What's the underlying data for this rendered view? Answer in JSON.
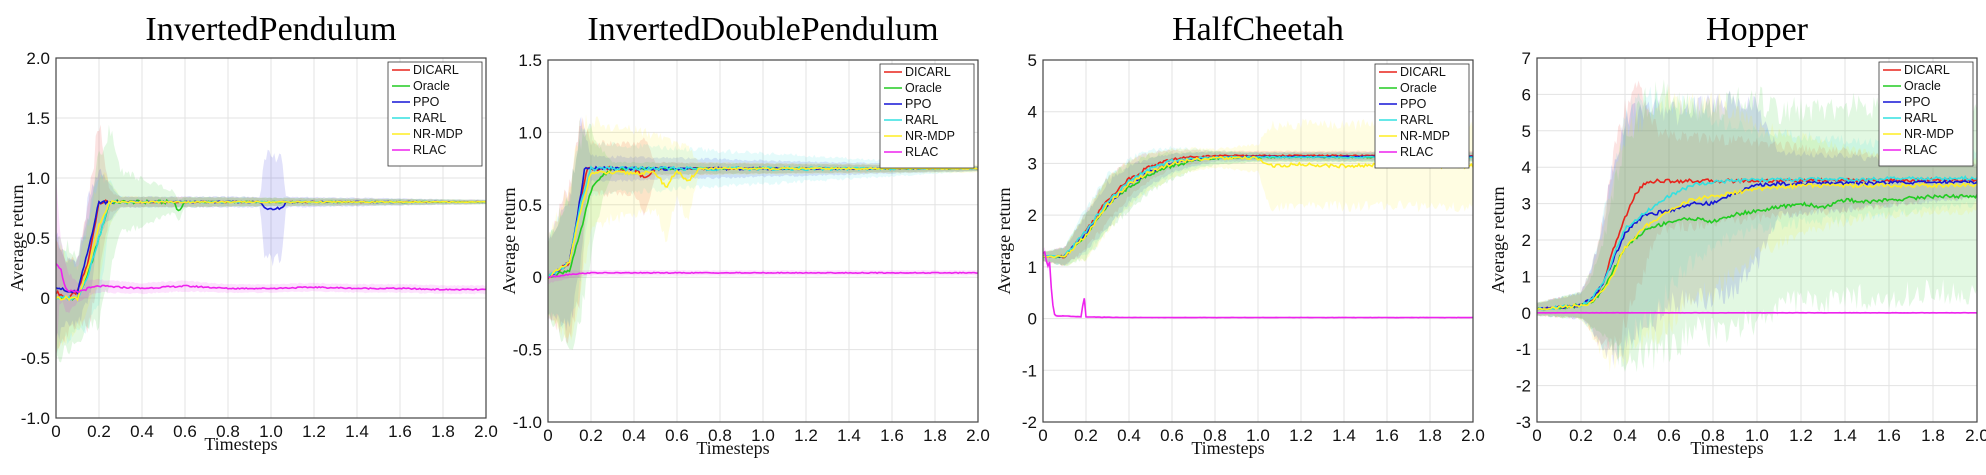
{
  "chart_data": [
    {
      "type": "line",
      "title": "InvertedPendulum",
      "xlabel": "Timesteps",
      "ylabel": "Average return",
      "xlim": [
        0,
        2.0
      ],
      "ylim": [
        -1.0,
        2.0
      ],
      "xticks": [
        "0",
        "0.2",
        "0.4",
        "0.6",
        "0.8",
        "1.0",
        "1.2",
        "1.4",
        "1.6",
        "1.8",
        "2.0"
      ],
      "yticks": [
        "-1.0",
        "-0.5",
        "0",
        "0.5",
        "1.0",
        "1.5",
        "2.0"
      ],
      "grid": true,
      "legend": "top-right",
      "series": [
        {
          "name": "DICARL",
          "color": "#e8231c",
          "x": [
            0,
            0.05,
            0.1,
            0.15,
            0.2,
            0.25,
            0.3,
            2.0
          ],
          "y": [
            0.05,
            0.0,
            0.05,
            0.3,
            0.8,
            0.8,
            0.8,
            0.8
          ],
          "band": [
            0.55,
            0.35,
            0.3,
            0.6,
            0.75,
            0.1,
            0.05,
            0.02
          ]
        },
        {
          "name": "Oracle",
          "color": "#22cc22",
          "x": [
            0,
            0.1,
            0.15,
            0.2,
            0.25,
            0.3,
            0.55,
            0.57,
            0.6,
            2.0
          ],
          "y": [
            0.0,
            0.0,
            0.2,
            0.5,
            0.8,
            0.8,
            0.8,
            0.72,
            0.8,
            0.8
          ],
          "band": [
            0.6,
            0.4,
            0.5,
            0.8,
            0.7,
            0.3,
            0.1,
            0.1,
            0.05,
            0.02
          ]
        },
        {
          "name": "PPO",
          "color": "#1515d6",
          "x": [
            0,
            0.05,
            0.1,
            0.15,
            0.2,
            0.3,
            0.95,
            0.97,
            1.05,
            1.07,
            2.0
          ],
          "y": [
            0.1,
            0.05,
            0.05,
            0.4,
            0.8,
            0.8,
            0.8,
            0.75,
            0.75,
            0.8,
            0.8
          ],
          "band": [
            0.5,
            0.3,
            0.3,
            0.5,
            0.3,
            0.05,
            0.05,
            0.5,
            0.5,
            0.05,
            0.02
          ]
        },
        {
          "name": "RARL",
          "color": "#33e0e0",
          "x": [
            0,
            0.1,
            0.15,
            0.2,
            0.25,
            0.3,
            2.0
          ],
          "y": [
            0.0,
            0.0,
            0.2,
            0.5,
            0.8,
            0.8,
            0.8
          ],
          "band": [
            0.5,
            0.3,
            0.5,
            0.6,
            0.2,
            0.05,
            0.02
          ]
        },
        {
          "name": "NR-MDP",
          "color": "#ffee22",
          "x": [
            0,
            0.1,
            0.15,
            0.2,
            0.25,
            0.3,
            2.0
          ],
          "y": [
            0.0,
            0.0,
            0.25,
            0.6,
            0.8,
            0.8,
            0.8
          ],
          "band": [
            0.5,
            0.3,
            0.4,
            0.5,
            0.2,
            0.05,
            0.02
          ]
        },
        {
          "name": "RLAC",
          "color": "#ee22ee",
          "x": [
            0,
            0.02,
            0.05,
            0.1,
            0.15,
            0.2,
            0.4,
            0.6,
            0.8,
            1.0,
            1.2,
            1.4,
            1.6,
            1.8,
            2.0
          ],
          "y": [
            0.3,
            0.25,
            0.05,
            0.05,
            0.08,
            0.1,
            0.08,
            0.1,
            0.08,
            0.08,
            0.09,
            0.08,
            0.08,
            0.07,
            0.07
          ],
          "band": [
            0.8,
            0.3,
            0.2,
            0.1,
            0.08,
            0.06,
            0.05,
            0.05,
            0.04,
            0.04,
            0.04,
            0.04,
            0.04,
            0.04,
            0.04
          ]
        }
      ]
    },
    {
      "type": "line",
      "title": "InvertedDoublePendulum",
      "xlabel": "Timesteps",
      "ylabel": "Average return",
      "xlim": [
        0,
        2.0
      ],
      "ylim": [
        -1.0,
        1.5
      ],
      "xticks": [
        "0",
        "0.2",
        "0.4",
        "0.6",
        "0.8",
        "1.0",
        "1.2",
        "1.4",
        "1.6",
        "1.8",
        "2.0"
      ],
      "yticks": [
        "-1.0",
        "-0.5",
        "0",
        "0.5",
        "1.0",
        "1.5"
      ],
      "grid": true,
      "legend": "top-right",
      "series": [
        {
          "name": "DICARL",
          "color": "#e8231c",
          "x": [
            0,
            0.1,
            0.15,
            0.18,
            0.2,
            0.4,
            0.45,
            0.5,
            2.0
          ],
          "y": [
            0.0,
            0.1,
            0.5,
            0.75,
            0.75,
            0.75,
            0.68,
            0.75,
            0.75
          ],
          "band": [
            0.3,
            0.6,
            0.7,
            0.3,
            0.2,
            0.2,
            0.3,
            0.05,
            0.02
          ]
        },
        {
          "name": "Oracle",
          "color": "#22cc22",
          "x": [
            0,
            0.1,
            0.15,
            0.2,
            0.25,
            0.3,
            2.0
          ],
          "y": [
            0.0,
            0.05,
            0.3,
            0.6,
            0.7,
            0.75,
            0.75
          ],
          "band": [
            0.3,
            0.6,
            0.7,
            0.5,
            0.2,
            0.05,
            0.02
          ]
        },
        {
          "name": "PPO",
          "color": "#1515d6",
          "x": [
            0,
            0.1,
            0.15,
            0.17,
            0.2,
            2.0
          ],
          "y": [
            0.0,
            0.1,
            0.55,
            0.75,
            0.75,
            0.75
          ],
          "band": [
            0.3,
            0.5,
            0.6,
            0.3,
            0.1,
            0.02
          ]
        },
        {
          "name": "RARL",
          "color": "#33e0e0",
          "x": [
            0,
            0.1,
            0.15,
            0.2,
            2.0
          ],
          "y": [
            0.0,
            0.1,
            0.5,
            0.75,
            0.75
          ],
          "band": [
            0.3,
            0.5,
            0.6,
            0.2,
            0.02
          ]
        },
        {
          "name": "NR-MDP",
          "color": "#ffee22",
          "x": [
            0,
            0.1,
            0.15,
            0.2,
            0.5,
            0.55,
            0.6,
            0.65,
            0.7,
            2.0
          ],
          "y": [
            0.0,
            0.1,
            0.45,
            0.72,
            0.72,
            0.62,
            0.74,
            0.65,
            0.75,
            0.75
          ],
          "band": [
            0.3,
            0.6,
            0.7,
            0.4,
            0.3,
            0.4,
            0.2,
            0.3,
            0.05,
            0.03
          ]
        },
        {
          "name": "RLAC",
          "color": "#ee22ee",
          "x": [
            0,
            0.1,
            0.2,
            0.4,
            2.0
          ],
          "y": [
            0.0,
            0.02,
            0.03,
            0.03,
            0.03
          ],
          "band": [
            0.05,
            0.03,
            0.02,
            0.02,
            0.02
          ]
        }
      ]
    },
    {
      "type": "line",
      "title": "HalfCheetah",
      "xlabel": "Timesteps",
      "ylabel": "Average return",
      "xlim": [
        0,
        2.0
      ],
      "ylim": [
        -2,
        5
      ],
      "xticks": [
        "0",
        "0.2",
        "0.4",
        "0.6",
        "0.8",
        "1.0",
        "1.2",
        "1.4",
        "1.6",
        "1.8",
        "2.0"
      ],
      "yticks": [
        "-2",
        "-1",
        "0",
        "1",
        "2",
        "3",
        "4",
        "5"
      ],
      "grid": true,
      "legend": "top-right",
      "series": [
        {
          "name": "DICARL",
          "color": "#e8231c",
          "x": [
            0,
            0.1,
            0.2,
            0.3,
            0.4,
            0.5,
            0.6,
            0.7,
            0.8,
            1.0,
            2.0
          ],
          "y": [
            1.2,
            1.2,
            1.7,
            2.3,
            2.7,
            2.95,
            3.08,
            3.13,
            3.15,
            3.15,
            3.15
          ],
          "band": [
            0.1,
            0.2,
            0.4,
            0.5,
            0.4,
            0.3,
            0.2,
            0.15,
            0.1,
            0.1,
            0.1
          ]
        },
        {
          "name": "Oracle",
          "color": "#22cc22",
          "x": [
            0,
            0.1,
            0.2,
            0.3,
            0.4,
            0.5,
            0.6,
            0.7,
            0.8,
            1.0,
            2.0
          ],
          "y": [
            1.2,
            1.2,
            1.6,
            2.2,
            2.55,
            2.8,
            2.95,
            3.05,
            3.1,
            3.12,
            3.12
          ],
          "band": [
            0.1,
            0.2,
            0.5,
            0.6,
            0.5,
            0.4,
            0.3,
            0.2,
            0.15,
            0.1,
            0.1
          ]
        },
        {
          "name": "PPO",
          "color": "#1515d6",
          "x": [
            0,
            0.1,
            0.2,
            0.3,
            0.4,
            0.5,
            0.6,
            0.7,
            0.8,
            1.0,
            2.0
          ],
          "y": [
            1.2,
            1.2,
            1.65,
            2.2,
            2.6,
            2.85,
            3.0,
            3.08,
            3.12,
            3.13,
            3.13
          ],
          "band": [
            0.1,
            0.2,
            0.4,
            0.5,
            0.4,
            0.3,
            0.2,
            0.15,
            0.1,
            0.1,
            0.1
          ]
        },
        {
          "name": "RARL",
          "color": "#33e0e0",
          "x": [
            0,
            0.1,
            0.2,
            0.3,
            0.4,
            0.5,
            0.6,
            0.7,
            0.8,
            1.0,
            2.0
          ],
          "y": [
            1.2,
            1.2,
            1.7,
            2.25,
            2.65,
            2.9,
            3.05,
            3.1,
            3.12,
            3.12,
            3.12
          ],
          "band": [
            0.1,
            0.2,
            0.5,
            0.6,
            0.5,
            0.4,
            0.3,
            0.2,
            0.15,
            0.1,
            0.1
          ]
        },
        {
          "name": "NR-MDP",
          "color": "#ffee22",
          "x": [
            0,
            0.1,
            0.2,
            0.3,
            0.4,
            0.5,
            0.6,
            0.7,
            0.8,
            1.0,
            1.05,
            1.2,
            1.4,
            1.6,
            1.8,
            2.0
          ],
          "y": [
            1.2,
            1.2,
            1.6,
            2.2,
            2.6,
            2.85,
            3.0,
            3.08,
            3.1,
            3.1,
            2.95,
            2.98,
            2.95,
            2.97,
            2.95,
            2.95
          ],
          "band": [
            0.1,
            0.2,
            0.5,
            0.6,
            0.5,
            0.4,
            0.3,
            0.25,
            0.2,
            0.3,
            0.9,
            0.9,
            0.9,
            0.9,
            0.9,
            0.9
          ]
        },
        {
          "name": "RLAC",
          "color": "#ee22ee",
          "x": [
            0,
            0.01,
            0.02,
            0.03,
            0.04,
            0.05,
            0.06,
            0.1,
            0.18,
            0.19,
            0.2,
            0.4,
            1.0,
            2.0
          ],
          "y": [
            1.25,
            1.3,
            0.95,
            1.15,
            0.5,
            0.1,
            0.05,
            0.05,
            0.03,
            0.5,
            0.03,
            0.02,
            0.02,
            0.02
          ],
          "band": [
            0.1,
            0.1,
            0.1,
            0.1,
            0.1,
            0.05,
            0.03,
            0.03,
            0.03,
            0.03,
            0.03,
            0.02,
            0.02,
            0.02
          ]
        }
      ]
    },
    {
      "type": "line",
      "title": "Hopper",
      "xlabel": "Timesteps",
      "ylabel": "Average return",
      "xlim": [
        0,
        2.0
      ],
      "ylim": [
        -3,
        7
      ],
      "xticks": [
        "0",
        "0.2",
        "0.4",
        "0.6",
        "0.8",
        "1.0",
        "1.2",
        "1.4",
        "1.6",
        "1.8",
        "2.0"
      ],
      "yticks": [
        "-3",
        "-2",
        "-1",
        "0",
        "1",
        "2",
        "3",
        "4",
        "5",
        "6",
        "7"
      ],
      "grid": true,
      "legend": "top-right",
      "series": [
        {
          "name": "DICARL",
          "color": "#e8231c",
          "x": [
            0,
            0.2,
            0.25,
            0.3,
            0.35,
            0.4,
            0.45,
            0.5,
            0.55,
            2.0
          ],
          "y": [
            0.1,
            0.2,
            0.35,
            0.8,
            1.8,
            2.6,
            3.3,
            3.6,
            3.62,
            3.65
          ],
          "band": [
            0.2,
            0.4,
            1.0,
            2.0,
            3.0,
            3.5,
            3.2,
            2.5,
            1.5,
            0.5
          ]
        },
        {
          "name": "Oracle",
          "color": "#22cc22",
          "x": [
            0,
            0.2,
            0.25,
            0.3,
            0.35,
            0.4,
            0.5,
            0.6,
            0.7,
            0.8,
            0.9,
            1.0,
            1.1,
            1.2,
            1.3,
            1.4,
            1.5,
            1.6,
            1.7,
            1.8,
            1.9,
            2.0
          ],
          "y": [
            0.1,
            0.2,
            0.3,
            0.6,
            1.2,
            1.8,
            2.3,
            2.5,
            2.6,
            2.5,
            2.7,
            2.8,
            2.9,
            3.0,
            2.9,
            3.1,
            3.05,
            3.1,
            3.15,
            3.2,
            3.2,
            3.2
          ],
          "band": [
            0.2,
            0.4,
            0.8,
            1.5,
            2.5,
            3.5,
            4.0,
            4.0,
            3.5,
            3.5,
            3.5,
            3.5,
            3.0,
            3.0,
            3.0,
            3.0,
            3.0,
            3.0,
            3.0,
            3.0,
            3.0,
            3.0
          ]
        },
        {
          "name": "PPO",
          "color": "#1515d6",
          "x": [
            0,
            0.2,
            0.25,
            0.3,
            0.35,
            0.4,
            0.45,
            0.5,
            0.6,
            0.7,
            0.8,
            0.9,
            1.0,
            1.1,
            2.0
          ],
          "y": [
            0.1,
            0.2,
            0.4,
            0.8,
            1.5,
            2.2,
            2.5,
            2.7,
            2.8,
            3.0,
            3.0,
            3.3,
            3.5,
            3.55,
            3.6
          ],
          "band": [
            0.2,
            0.4,
            1.0,
            2.0,
            3.0,
            3.5,
            3.5,
            3.5,
            3.0,
            3.0,
            3.0,
            3.0,
            2.5,
            1.0,
            0.5
          ]
        },
        {
          "name": "RARL",
          "color": "#33e0e0",
          "x": [
            0,
            0.2,
            0.25,
            0.3,
            0.35,
            0.4,
            0.5,
            0.6,
            0.7,
            0.8,
            1.0,
            2.0
          ],
          "y": [
            0.1,
            0.2,
            0.4,
            0.8,
            1.6,
            2.3,
            2.8,
            3.2,
            3.5,
            3.6,
            3.65,
            3.7
          ],
          "band": [
            0.2,
            0.4,
            1.0,
            2.0,
            3.0,
            3.5,
            3.5,
            3.0,
            2.5,
            2.0,
            1.5,
            0.8
          ]
        },
        {
          "name": "NR-MDP",
          "color": "#ffee22",
          "x": [
            0,
            0.2,
            0.25,
            0.3,
            0.35,
            0.4,
            0.5,
            0.6,
            0.7,
            0.8,
            0.9,
            1.0,
            1.2,
            1.5,
            2.0
          ],
          "y": [
            0.1,
            0.2,
            0.3,
            0.6,
            1.1,
            1.8,
            2.4,
            2.8,
            3.1,
            3.2,
            3.3,
            3.4,
            3.5,
            3.5,
            3.5
          ],
          "band": [
            0.2,
            0.4,
            1.0,
            2.0,
            3.0,
            3.5,
            3.5,
            3.5,
            3.0,
            3.0,
            2.5,
            2.0,
            1.5,
            1.0,
            0.8
          ]
        },
        {
          "name": "RLAC",
          "color": "#ee22ee",
          "x": [
            0,
            2.0
          ],
          "y": [
            0.0,
            0.0
          ],
          "band": [
            0.02,
            0.02
          ]
        }
      ]
    }
  ]
}
